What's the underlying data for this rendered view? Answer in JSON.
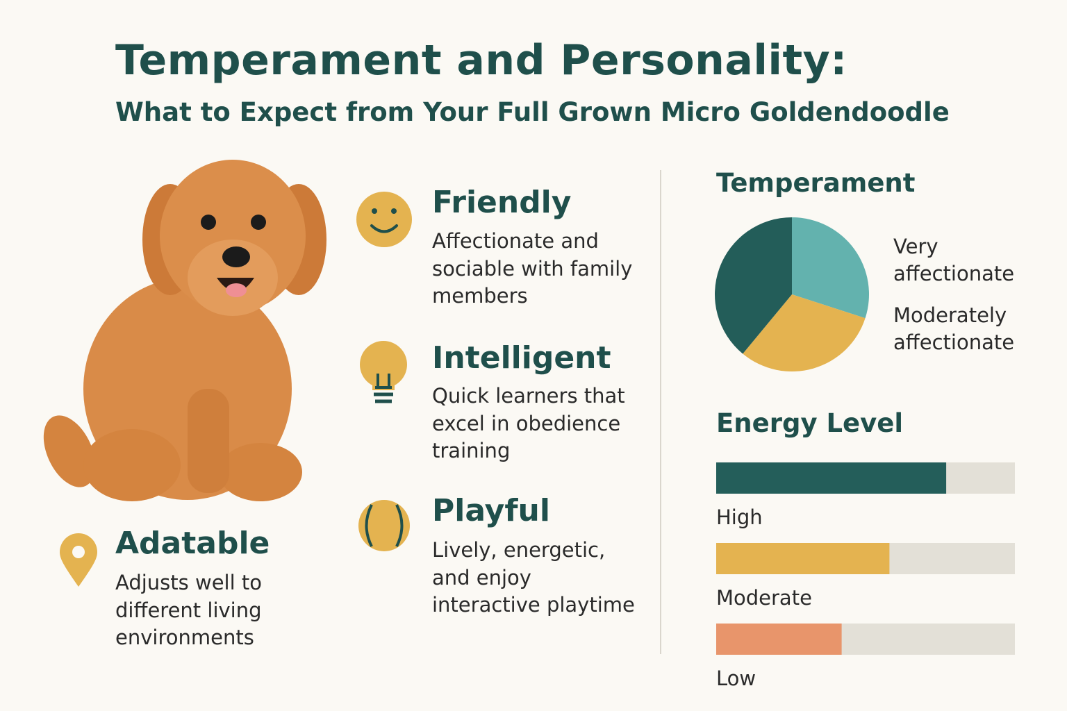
{
  "header": {
    "title": "Temperament and Personality:",
    "subtitle": "What to Expect from Your Full Grown Micro Goldendoodle"
  },
  "traits": [
    {
      "heading": "Friendly",
      "lines": [
        "Affectionate and",
        "sociable with family",
        "members"
      ]
    },
    {
      "heading": "Intelligent",
      "lines": [
        "Quick learners that",
        "excel in obedience",
        "training"
      ]
    },
    {
      "heading": "Playful",
      "lines": [
        "Lively, energetic,",
        "and enjoy",
        "interactive playtime"
      ]
    },
    {
      "heading": "Adatable",
      "lines": [
        "Adjusts well to",
        "different living",
        "environments"
      ]
    }
  ],
  "chart_data": [
    {
      "type": "pie",
      "title": "Temperament",
      "categories": [
        "Very affectionate",
        "Moderately affectionate",
        null
      ],
      "values": [
        30,
        31,
        39
      ],
      "colors": [
        "#63b2ae",
        "#e4b350",
        "#235d59"
      ]
    },
    {
      "type": "bar",
      "title": "Energy Level",
      "categories": [
        "High",
        "Moderate",
        "Low"
      ],
      "values": [
        77,
        58,
        42
      ],
      "colors": [
        "#245e5a",
        "#e4b350",
        "#e8956b"
      ],
      "xlim": [
        0,
        100
      ]
    }
  ]
}
